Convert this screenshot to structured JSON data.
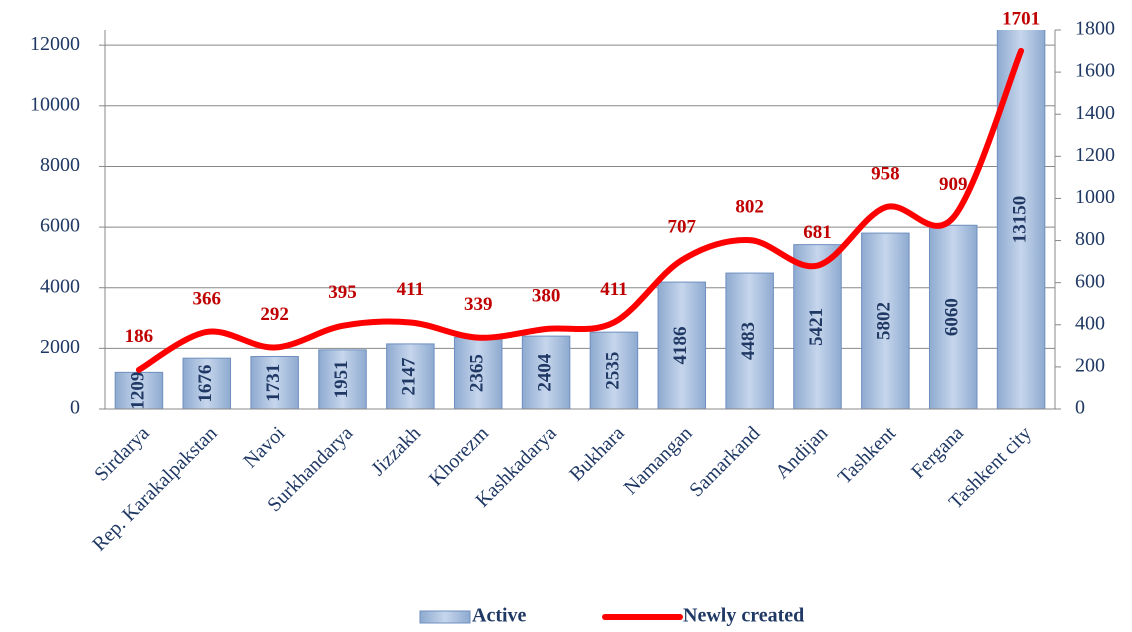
{
  "chart_data": {
    "type": "bar",
    "categories": [
      "Sirdarya",
      "Rep. Karakalpakstan",
      "Navoi",
      "Surkhandarya",
      "Jizzakh",
      "Khorezm",
      "Kashkadarya",
      "Bukhara",
      "Namangan",
      "Samarkand",
      "Andijan",
      "Tashkent",
      "Fergana",
      "Tashkent city"
    ],
    "series": [
      {
        "name": "Active",
        "type": "bar",
        "color": "#a7bfdf",
        "values": [
          1209,
          1676,
          1731,
          1951,
          2147,
          2365,
          2404,
          2535,
          4186,
          4483,
          5421,
          5802,
          6060,
          13150
        ]
      },
      {
        "name": "Newly created",
        "type": "line",
        "axis": "y2",
        "color": "#ff0000",
        "values": [
          186,
          366,
          292,
          395,
          411,
          339,
          380,
          411,
          707,
          802,
          681,
          958,
          909,
          1701
        ]
      }
    ],
    "ylim": [
      0,
      12500
    ],
    "yticks": [
      0,
      2000,
      4000,
      6000,
      8000,
      10000,
      12000
    ],
    "y2lim": [
      0,
      1800
    ],
    "y2ticks": [
      0,
      200,
      400,
      600,
      800,
      1000,
      1200,
      1400,
      1600,
      1800
    ],
    "grid": true,
    "legend": "bottom"
  }
}
